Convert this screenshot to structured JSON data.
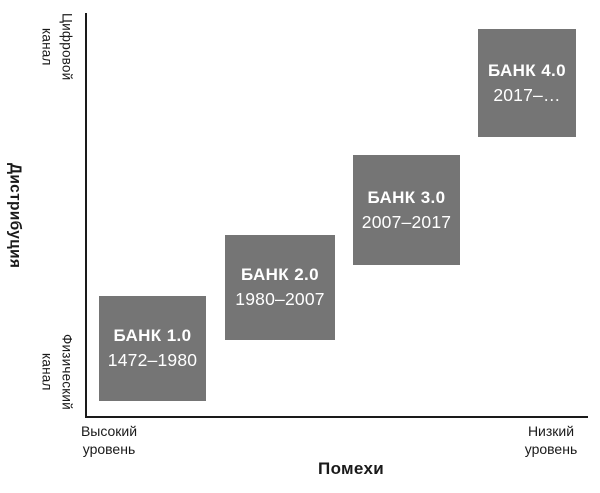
{
  "figure": {
    "y_axis_title": "Дистрибуция",
    "y_top_label": "Цифровой\nканал",
    "y_bottom_label": "Физический\nканал",
    "x_axis_title": "Помехи",
    "x_left_label": "Высокий\nуровень",
    "x_right_label": "Низкий\nуровень"
  },
  "boxes": [
    {
      "title": "БАНК 1.0",
      "period": "1472–1980"
    },
    {
      "title": "БАНК 2.0",
      "period": "1980–2007"
    },
    {
      "title": "БАНК 3.0",
      "period": "2007–2017"
    },
    {
      "title": "БАНК 4.0",
      "period": "2017–…"
    }
  ],
  "colors": {
    "background": "#ffffff",
    "axis": "#1a1a1a",
    "label_text": "#1a1a1a",
    "box_fill": "#757575",
    "box_text": "#ffffff"
  },
  "chart_data": {
    "type": "scatter",
    "title": "",
    "xlabel": "Помехи",
    "ylabel": "Дистрибуция",
    "x_axis_endpoints": [
      "Высокий уровень",
      "Низкий уровень"
    ],
    "y_axis_endpoints": [
      "Физический канал",
      "Цифровой канал"
    ],
    "grid": false,
    "legend": false,
    "marker": "gray-square",
    "points": [
      {
        "label": "БАНК 1.0",
        "period": "1472–1980",
        "x": 0.13,
        "y": 0.17
      },
      {
        "label": "БАНК 2.0",
        "period": "1980–2007",
        "x": 0.39,
        "y": 0.32
      },
      {
        "label": "БАНК 3.0",
        "period": "2007–2017",
        "x": 0.64,
        "y": 0.51
      },
      {
        "label": "БАНК 4.0",
        "period": "2017–…",
        "x": 0.88,
        "y": 0.83
      }
    ]
  }
}
